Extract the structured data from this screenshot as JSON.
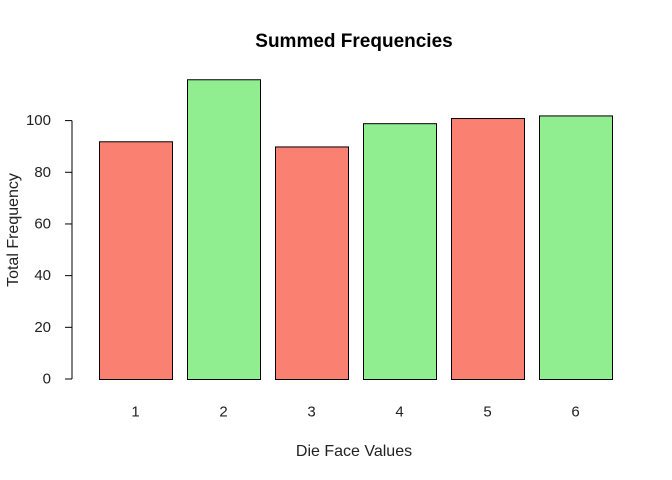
{
  "chart_data": {
    "type": "bar",
    "title": "Summed Frequencies",
    "xlabel": "Die Face Values",
    "ylabel": "Total Frequency",
    "categories": [
      "1",
      "2",
      "3",
      "4",
      "5",
      "6"
    ],
    "values": [
      92,
      116,
      90,
      99,
      101,
      102
    ],
    "colors": [
      "#fa8072",
      "#90ee90",
      "#fa8072",
      "#90ee90",
      "#fa8072",
      "#90ee90"
    ],
    "ylim": [
      0,
      120
    ],
    "yticks": [
      0,
      20,
      40,
      60,
      80,
      100
    ],
    "grid": false,
    "legend": "none"
  }
}
